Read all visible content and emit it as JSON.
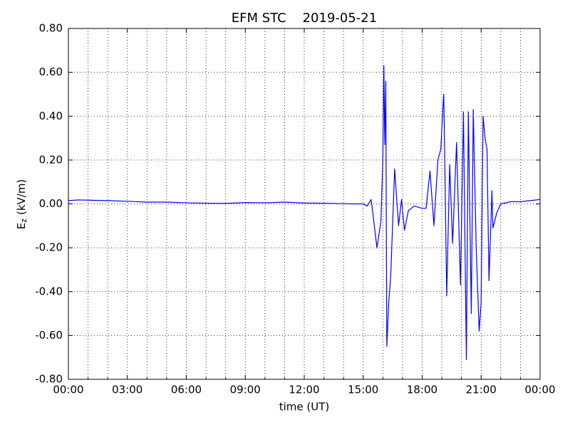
{
  "chart_data": {
    "type": "line",
    "title": "EFM STC    2019-05-21",
    "xlabel": "time (UT)",
    "ylabel": {
      "main": "E",
      "sub": "z",
      "unit": "(kV/m)"
    },
    "x": [
      0,
      0.5,
      1,
      2,
      3,
      3.5,
      4,
      5,
      6,
      7,
      8,
      9,
      10,
      11,
      12,
      13,
      14,
      14.5,
      15.0,
      15.2,
      15.4,
      15.5,
      15.7,
      15.9,
      16.0,
      16.05,
      16.1,
      16.15,
      16.2,
      16.3,
      16.4,
      16.6,
      16.8,
      16.95,
      17.1,
      17.3,
      17.6,
      18.0,
      18.2,
      18.4,
      18.6,
      18.8,
      18.95,
      19.05,
      19.1,
      19.25,
      19.4,
      19.55,
      19.75,
      19.95,
      20.1,
      20.25,
      20.35,
      20.5,
      20.6,
      20.75,
      20.9,
      21.0,
      21.1,
      21.2,
      21.3,
      21.4,
      21.55,
      21.6,
      21.8,
      22.0,
      22.5,
      23.0,
      23.5,
      24
    ],
    "series": [
      {
        "name": "Ez",
        "color": "#0000ff",
        "values": [
          0.015,
          0.018,
          0.017,
          0.015,
          0.012,
          0.01,
          0.008,
          0.008,
          0.005,
          0.003,
          0.002,
          0.006,
          0.005,
          0.008,
          0.004,
          0.003,
          0.001,
          0.0,
          0.0,
          -0.01,
          0.02,
          -0.05,
          -0.2,
          -0.08,
          0.2,
          0.63,
          0.27,
          0.56,
          -0.65,
          -0.45,
          -0.33,
          0.16,
          -0.1,
          0.02,
          -0.12,
          -0.03,
          -0.01,
          -0.02,
          -0.02,
          0.15,
          -0.1,
          0.2,
          0.25,
          0.43,
          0.5,
          -0.42,
          0.18,
          -0.18,
          0.28,
          -0.37,
          0.42,
          -0.71,
          0.42,
          -0.5,
          0.43,
          -0.2,
          -0.58,
          -0.45,
          0.4,
          0.3,
          0.25,
          -0.35,
          0.06,
          -0.11,
          -0.04,
          0.0,
          0.01,
          0.01,
          0.015,
          0.02
        ]
      }
    ],
    "xlim": [
      0,
      24
    ],
    "xticks": [
      {
        "value": 0,
        "label": "00:00"
      },
      {
        "value": 3,
        "label": "03:00"
      },
      {
        "value": 6,
        "label": "06:00"
      },
      {
        "value": 9,
        "label": "09:00"
      },
      {
        "value": 12,
        "label": "12:00"
      },
      {
        "value": 15,
        "label": "15:00"
      },
      {
        "value": 18,
        "label": "18:00"
      },
      {
        "value": 21,
        "label": "21:00"
      },
      {
        "value": 24,
        "label": "00:00"
      }
    ],
    "xminorticks": [
      1,
      2,
      4,
      5,
      7,
      8,
      10,
      11,
      13,
      14,
      16,
      17,
      19,
      20,
      22,
      23
    ],
    "ylim": [
      -0.8,
      0.8
    ],
    "yticks": [
      {
        "value": -0.8,
        "label": "-0.80"
      },
      {
        "value": -0.6,
        "label": "-0.60"
      },
      {
        "value": -0.4,
        "label": "-0.40"
      },
      {
        "value": -0.2,
        "label": "-0.20"
      },
      {
        "value": 0,
        "label": "0.00"
      },
      {
        "value": 0.2,
        "label": "0.20"
      },
      {
        "value": 0.4,
        "label": "0.40"
      },
      {
        "value": 0.6,
        "label": "0.60"
      },
      {
        "value": 0.8,
        "label": "0.80"
      }
    ],
    "grid": true
  }
}
